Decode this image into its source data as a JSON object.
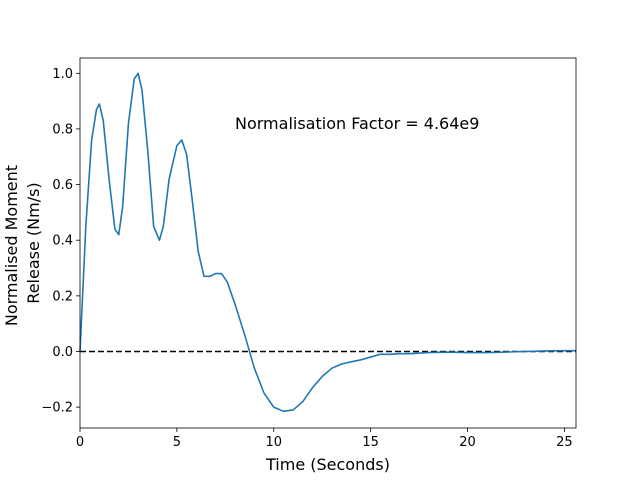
{
  "chart_data": {
    "type": "line",
    "title": "",
    "xlabel": "Time (Seconds)",
    "ylabel": "Normalised Moment Release (Nm/s)",
    "ylabel_lines": [
      "Normalised Moment",
      "Release (Nm/s)"
    ],
    "xlim": [
      0,
      25.6
    ],
    "ylim": [
      -0.275,
      1.055
    ],
    "xticks": [
      0,
      5,
      10,
      15,
      20,
      25
    ],
    "yticks": [
      -0.2,
      0.0,
      0.2,
      0.4,
      0.6,
      0.8,
      1.0
    ],
    "ytick_labels": [
      "−0.2",
      "0.0",
      "0.2",
      "0.4",
      "0.6",
      "0.8",
      "1.0"
    ],
    "grid": false,
    "annotation": {
      "text": "Normalisation Factor = 4.64e9",
      "x": 8.0,
      "y": 0.8
    },
    "reference_line": {
      "y": 0.0,
      "style": "dashed",
      "color": "#000000"
    },
    "series": [
      {
        "color": "#1f77b4",
        "x": [
          0,
          0.3,
          0.6,
          0.85,
          1.0,
          1.2,
          1.5,
          1.8,
          2.0,
          2.2,
          2.5,
          2.8,
          3.0,
          3.2,
          3.5,
          3.8,
          4.1,
          4.3,
          4.6,
          5.0,
          5.25,
          5.5,
          5.8,
          6.1,
          6.4,
          6.7,
          7.0,
          7.3,
          7.6,
          8.0,
          8.5,
          9.0,
          9.5,
          10.0,
          10.5,
          11.0,
          11.5,
          12.0,
          12.5,
          13.0,
          13.5,
          14.0,
          14.5,
          15.0,
          15.5,
          16.0,
          16.5,
          17.0,
          18.0,
          19.0,
          20.0,
          21.0,
          22.0,
          23.0,
          24.0,
          25.0,
          25.6
        ],
        "y": [
          0.0,
          0.45,
          0.76,
          0.87,
          0.89,
          0.83,
          0.62,
          0.44,
          0.42,
          0.52,
          0.82,
          0.98,
          1.0,
          0.94,
          0.72,
          0.45,
          0.4,
          0.45,
          0.62,
          0.74,
          0.76,
          0.71,
          0.54,
          0.36,
          0.27,
          0.27,
          0.28,
          0.28,
          0.25,
          0.17,
          0.06,
          -0.06,
          -0.15,
          -0.2,
          -0.215,
          -0.21,
          -0.18,
          -0.13,
          -0.09,
          -0.06,
          -0.045,
          -0.037,
          -0.03,
          -0.02,
          -0.01,
          -0.01,
          -0.008,
          -0.008,
          -0.004,
          -0.002,
          -0.004,
          -0.004,
          -0.002,
          0.0,
          0.002,
          0.003,
          0.003
        ]
      }
    ]
  }
}
